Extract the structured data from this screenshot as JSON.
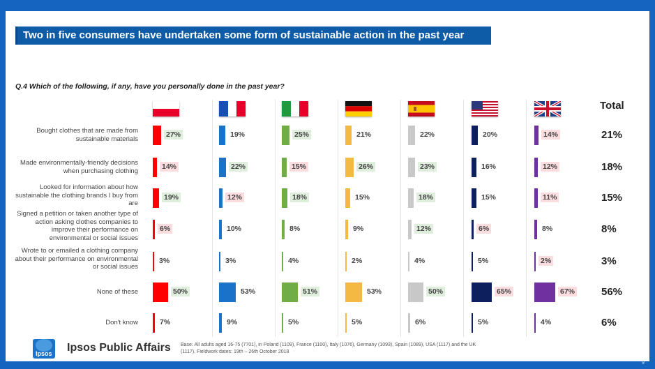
{
  "header": {
    "title": "Two in five consumers have undertaken some form of sustainable action in the past year"
  },
  "question": "Q.4 Which of the following, if any, have you personally done in the past year?",
  "total_label": "Total",
  "footer": {
    "brand": "Ipsos Public Affairs",
    "logo_text": "Ipsos",
    "base_text": "Base: All adults aged 16-75 (7701), in Poland (1109), France (1100), Italy (1076), Germany (1093), Spain (1089), USA (1117) and the UK (1117). Fieldwork dates: 19th – 26th October 2018",
    "page_number": "9"
  },
  "colors": {
    "background": "#1565c0",
    "title_bar": "#0e5ca8",
    "highlight_high": "#dfeedd",
    "highlight_low": "#fbdde0"
  },
  "chart_data": {
    "type": "bar",
    "orientation": "horizontal-small-multiples",
    "categories": [
      "Bought clothes that are made from sustainable materials",
      "Made environmentally-friendly decisions when purchasing clothing",
      "Looked for information about how sustainable the clothing brands I buy from are",
      "Signed a petition or taken another type of action asking clothes companies to improve their performance on environmental or social issues",
      "Wrote to or emailed a clothing company about their performance on environmental or social issues",
      "None of these",
      "Don't know"
    ],
    "series": [
      {
        "flag": "poland-flag",
        "color": "#ff0000",
        "values": [
          27,
          14,
          19,
          6,
          3,
          50,
          7
        ],
        "highlight": [
          "high",
          "low",
          "high",
          "low",
          "none",
          "high",
          "none"
        ]
      },
      {
        "flag": "france-flag",
        "color": "#1a73c9",
        "values": [
          19,
          22,
          12,
          10,
          3,
          53,
          9
        ],
        "highlight": [
          "none",
          "high",
          "low",
          "none",
          "none",
          "none",
          "none"
        ]
      },
      {
        "flag": "italy-flag",
        "color": "#70ad47",
        "values": [
          25,
          15,
          18,
          8,
          4,
          51,
          5
        ],
        "highlight": [
          "high",
          "low",
          "high",
          "none",
          "none",
          "high",
          "none"
        ]
      },
      {
        "flag": "germany-flag",
        "color": "#f4b942",
        "values": [
          21,
          26,
          15,
          9,
          2,
          53,
          5
        ],
        "highlight": [
          "none",
          "high",
          "none",
          "none",
          "none",
          "none",
          "none"
        ]
      },
      {
        "flag": "spain-flag",
        "color": "#c8c8c8",
        "values": [
          22,
          23,
          18,
          12,
          4,
          50,
          6
        ],
        "highlight": [
          "none",
          "high",
          "high",
          "high",
          "none",
          "high",
          "none"
        ]
      },
      {
        "flag": "usa-flag",
        "color": "#0d1f5c",
        "values": [
          20,
          16,
          15,
          6,
          5,
          65,
          5
        ],
        "highlight": [
          "none",
          "none",
          "none",
          "low",
          "none",
          "low",
          "none"
        ]
      },
      {
        "flag": "uk-flag",
        "color": "#7030a0",
        "values": [
          14,
          12,
          11,
          8,
          2,
          67,
          4
        ],
        "highlight": [
          "low",
          "low",
          "low",
          "none",
          "low",
          "low",
          "none"
        ]
      }
    ],
    "totals": [
      21,
      18,
      15,
      8,
      3,
      56,
      6
    ],
    "unit": "%"
  }
}
